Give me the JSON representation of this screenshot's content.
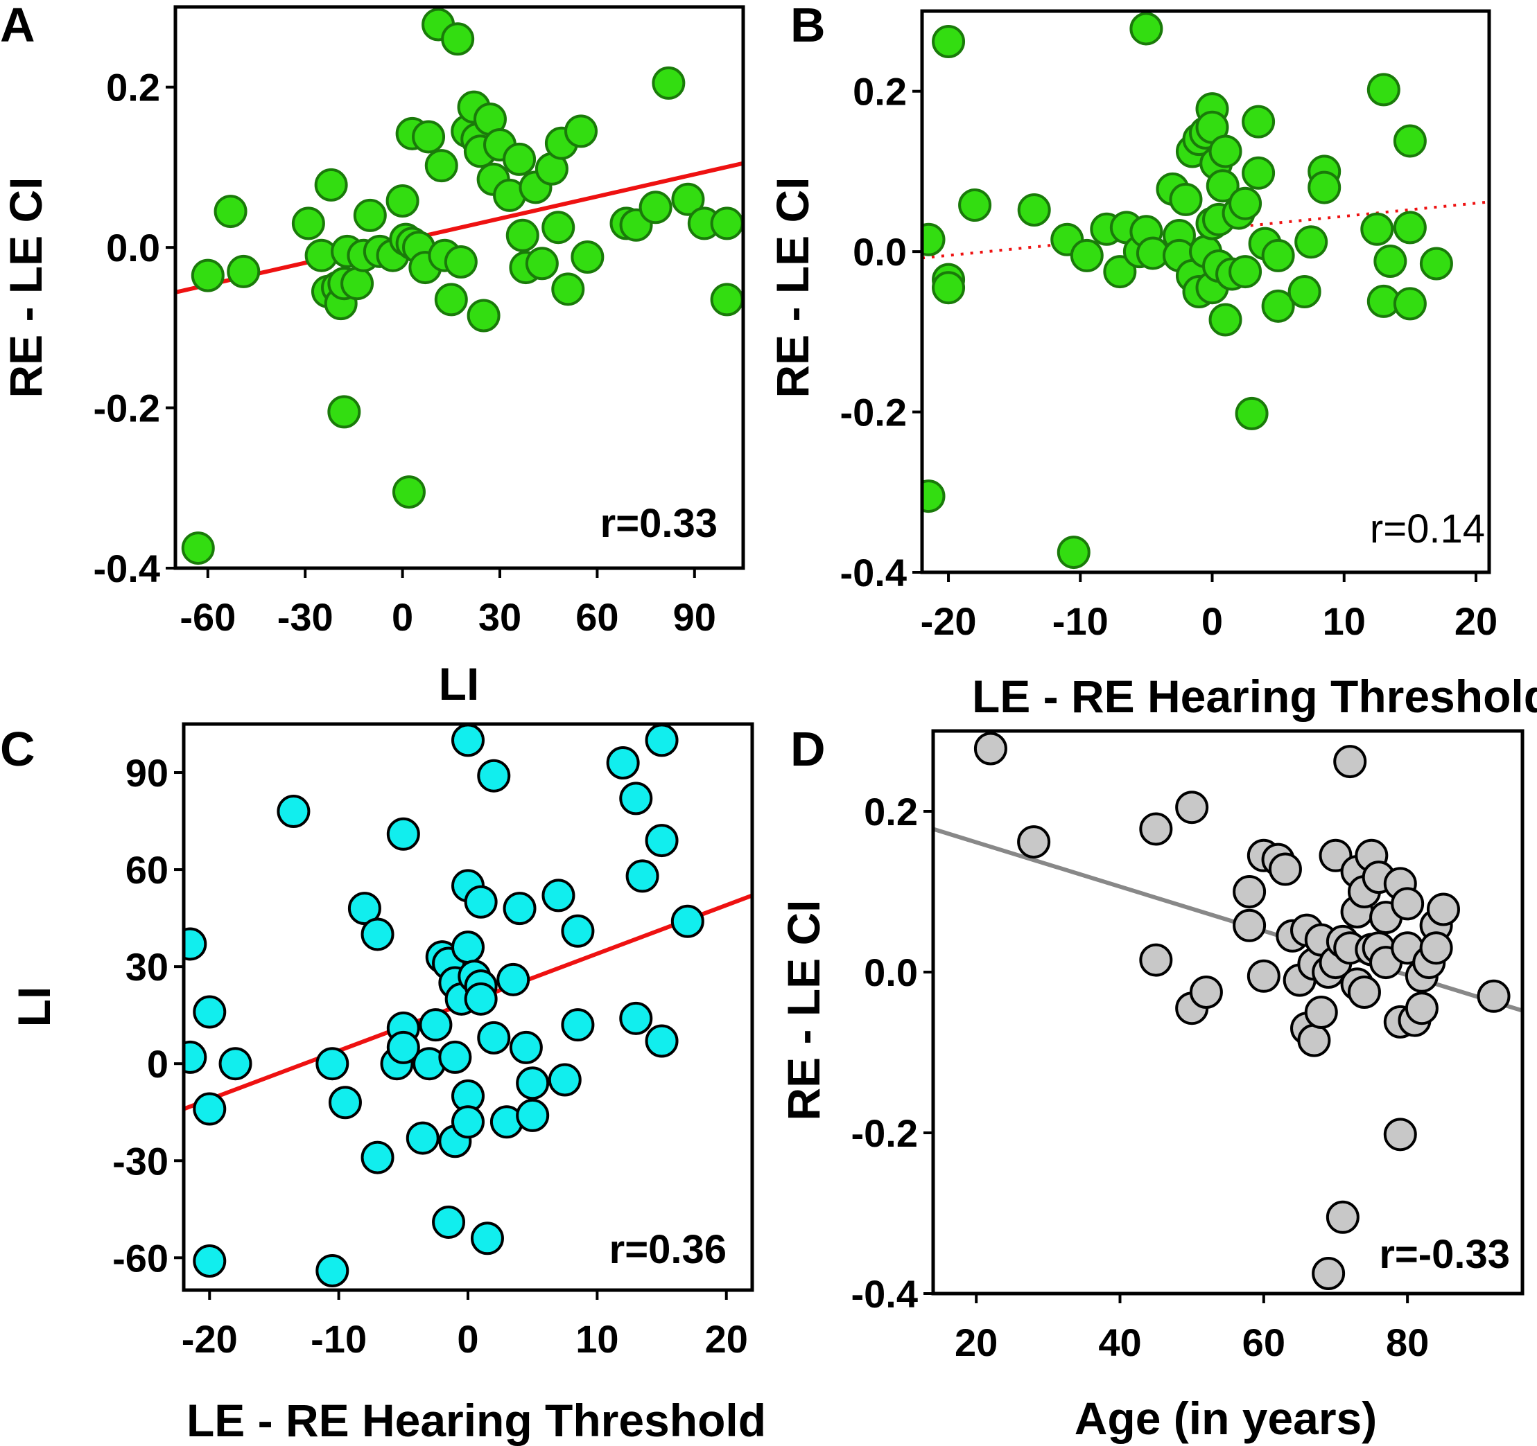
{
  "chart_data": [
    {
      "panel": "A",
      "type": "scatter",
      "xlabel": "LI",
      "ylabel": "RE - LE CI",
      "xlim": [
        -70,
        105
      ],
      "ylim": [
        -0.4,
        0.3
      ],
      "xticks": [
        -60,
        -30,
        0,
        30,
        60,
        90
      ],
      "yticks": [
        -0.4,
        -0.2,
        0.0,
        0.2
      ],
      "xtick_labels": [
        "-60",
        "-30",
        "0",
        "30",
        "60",
        "90"
      ],
      "ytick_labels": [
        "-0.4",
        "-0.2",
        "0.0",
        "0.2"
      ],
      "annotation": "r=0.33",
      "annotation_bold": true,
      "marker_color": "#33dd11",
      "marker_edge": "#1a7a0a",
      "trend": {
        "style": "solid",
        "color": "#ee1111",
        "x": [
          -70,
          105
        ],
        "y": [
          -0.056,
          0.105
        ]
      },
      "points": [
        {
          "x": -63,
          "y": -0.375
        },
        {
          "x": -60,
          "y": -0.035
        },
        {
          "x": -53,
          "y": 0.045
        },
        {
          "x": -49,
          "y": -0.03
        },
        {
          "x": 2,
          "y": -0.305
        },
        {
          "x": -18,
          "y": -0.205
        },
        {
          "x": -29,
          "y": 0.03
        },
        {
          "x": -25,
          "y": -0.01
        },
        {
          "x": -23,
          "y": -0.055
        },
        {
          "x": -22,
          "y": 0.078
        },
        {
          "x": -20,
          "y": -0.05
        },
        {
          "x": -19,
          "y": -0.07
        },
        {
          "x": -18,
          "y": -0.045
        },
        {
          "x": -17,
          "y": -0.005
        },
        {
          "x": -14,
          "y": -0.045
        },
        {
          "x": -12,
          "y": -0.01
        },
        {
          "x": -10,
          "y": 0.04
        },
        {
          "x": -7,
          "y": -0.005
        },
        {
          "x": -3,
          "y": -0.01
        },
        {
          "x": 0,
          "y": 0.058
        },
        {
          "x": 1,
          "y": 0.01
        },
        {
          "x": 3,
          "y": 0.005
        },
        {
          "x": 3,
          "y": 0.142
        },
        {
          "x": 5,
          "y": 0.0
        },
        {
          "x": 7,
          "y": -0.025
        },
        {
          "x": 8,
          "y": 0.138
        },
        {
          "x": 11,
          "y": 0.278
        },
        {
          "x": 12,
          "y": 0.102
        },
        {
          "x": 13,
          "y": -0.01
        },
        {
          "x": 15,
          "y": -0.065
        },
        {
          "x": 17,
          "y": 0.26
        },
        {
          "x": 18,
          "y": -0.018
        },
        {
          "x": 20,
          "y": 0.145
        },
        {
          "x": 22,
          "y": 0.175
        },
        {
          "x": 23,
          "y": 0.135
        },
        {
          "x": 24,
          "y": 0.12
        },
        {
          "x": 25,
          "y": -0.085
        },
        {
          "x": 27,
          "y": 0.16
        },
        {
          "x": 28,
          "y": 0.085
        },
        {
          "x": 30,
          "y": 0.128
        },
        {
          "x": 33,
          "y": 0.065
        },
        {
          "x": 36,
          "y": 0.11
        },
        {
          "x": 37,
          "y": 0.015
        },
        {
          "x": 38,
          "y": -0.025
        },
        {
          "x": 41,
          "y": 0.075
        },
        {
          "x": 43,
          "y": -0.02
        },
        {
          "x": 46,
          "y": 0.098
        },
        {
          "x": 48,
          "y": 0.025
        },
        {
          "x": 49,
          "y": 0.13
        },
        {
          "x": 51,
          "y": -0.052
        },
        {
          "x": 55,
          "y": 0.145
        },
        {
          "x": 57,
          "y": -0.012
        },
        {
          "x": 69,
          "y": 0.03
        },
        {
          "x": 72,
          "y": 0.028
        },
        {
          "x": 78,
          "y": 0.05
        },
        {
          "x": 82,
          "y": 0.205
        },
        {
          "x": 88,
          "y": 0.06
        },
        {
          "x": 93,
          "y": 0.03
        },
        {
          "x": 100,
          "y": 0.03
        },
        {
          "x": 100,
          "y": -0.065
        }
      ]
    },
    {
      "panel": "B",
      "type": "scatter",
      "xlabel": "LE - RE Hearing Threshold",
      "ylabel": "RE - LE CI",
      "xlim": [
        -22,
        21
      ],
      "ylim": [
        -0.4,
        0.3
      ],
      "xticks": [
        -20,
        -10,
        0,
        10,
        20
      ],
      "yticks": [
        -0.4,
        -0.2,
        0.0,
        0.2
      ],
      "xtick_labels": [
        "-20",
        "-10",
        "0",
        "10",
        "20"
      ],
      "ytick_labels": [
        "-0.4",
        "-0.2",
        "0.0",
        "0.2"
      ],
      "annotation": "r=0.14",
      "annotation_bold": false,
      "marker_color": "#33dd11",
      "marker_edge": "#1a7a0a",
      "trend": {
        "style": "dotted",
        "color": "#ee1111",
        "x": [
          -22,
          21
        ],
        "y": [
          -0.008,
          0.062
        ]
      },
      "points": [
        {
          "x": -21.5,
          "y": 0.015
        },
        {
          "x": -21.5,
          "y": -0.305
        },
        {
          "x": -20,
          "y": 0.262
        },
        {
          "x": -20,
          "y": -0.035
        },
        {
          "x": -20,
          "y": -0.045
        },
        {
          "x": -18,
          "y": 0.058
        },
        {
          "x": -13.5,
          "y": 0.052
        },
        {
          "x": -11,
          "y": 0.015
        },
        {
          "x": -10.5,
          "y": -0.375
        },
        {
          "x": -9.5,
          "y": -0.005
        },
        {
          "x": -8,
          "y": 0.028
        },
        {
          "x": -7,
          "y": -0.025
        },
        {
          "x": -6.5,
          "y": 0.03
        },
        {
          "x": -5.5,
          "y": 0.0
        },
        {
          "x": -5,
          "y": 0.278
        },
        {
          "x": -5,
          "y": 0.025
        },
        {
          "x": -4.5,
          "y": -0.002
        },
        {
          "x": -3,
          "y": 0.078
        },
        {
          "x": -2.5,
          "y": 0.02
        },
        {
          "x": -2.5,
          "y": -0.005
        },
        {
          "x": -2,
          "y": 0.065
        },
        {
          "x": -1.5,
          "y": -0.03
        },
        {
          "x": -1.5,
          "y": 0.125
        },
        {
          "x": -1,
          "y": 0.14
        },
        {
          "x": -1,
          "y": -0.05
        },
        {
          "x": -0.5,
          "y": 0.148
        },
        {
          "x": -0.5,
          "y": 0.0
        },
        {
          "x": 0,
          "y": 0.178
        },
        {
          "x": 0,
          "y": 0.155
        },
        {
          "x": 0,
          "y": 0.035
        },
        {
          "x": 0,
          "y": -0.045
        },
        {
          "x": 0.3,
          "y": 0.11
        },
        {
          "x": 0.5,
          "y": 0.04
        },
        {
          "x": 0.5,
          "y": -0.018
        },
        {
          "x": 0.8,
          "y": 0.082
        },
        {
          "x": 1,
          "y": 0.125
        },
        {
          "x": 1,
          "y": -0.085
        },
        {
          "x": 1.5,
          "y": -0.028
        },
        {
          "x": 2,
          "y": 0.048
        },
        {
          "x": 2.5,
          "y": 0.06
        },
        {
          "x": 2.5,
          "y": -0.025
        },
        {
          "x": 3,
          "y": -0.202
        },
        {
          "x": 3.5,
          "y": 0.098
        },
        {
          "x": 3.5,
          "y": 0.162
        },
        {
          "x": 4,
          "y": 0.01
        },
        {
          "x": 5,
          "y": -0.005
        },
        {
          "x": 5,
          "y": -0.068
        },
        {
          "x": 7,
          "y": -0.05
        },
        {
          "x": 7.5,
          "y": 0.012
        },
        {
          "x": 8.5,
          "y": 0.1
        },
        {
          "x": 8.5,
          "y": 0.08
        },
        {
          "x": 12.5,
          "y": 0.028
        },
        {
          "x": 13,
          "y": 0.202
        },
        {
          "x": 13,
          "y": -0.062
        },
        {
          "x": 13.5,
          "y": -0.012
        },
        {
          "x": 15,
          "y": 0.138
        },
        {
          "x": 15,
          "y": 0.03
        },
        {
          "x": 15,
          "y": -0.065
        },
        {
          "x": 17,
          "y": -0.015
        }
      ]
    },
    {
      "panel": "C",
      "type": "scatter",
      "xlabel": "LE - RE Hearing Threshold",
      "ylabel": "LI",
      "xlim": [
        -22,
        22
      ],
      "ylim": [
        -70,
        105
      ],
      "xticks": [
        -20,
        -10,
        0,
        10,
        20
      ],
      "yticks": [
        -60,
        -30,
        0,
        30,
        60,
        90
      ],
      "xtick_labels": [
        "-20",
        "-10",
        "0",
        "10",
        "20"
      ],
      "ytick_labels": [
        "-60",
        "-30",
        "0",
        "30",
        "60",
        "90"
      ],
      "annotation": "r=0.36",
      "annotation_bold": true,
      "marker_color": "#11eeee",
      "marker_edge": "#000000",
      "trend": {
        "style": "solid",
        "color": "#ee1111",
        "x": [
          -22,
          22
        ],
        "y": [
          -14,
          52
        ]
      },
      "points": [
        {
          "x": -21.5,
          "y": 37
        },
        {
          "x": -21.5,
          "y": 2
        },
        {
          "x": -20,
          "y": 16
        },
        {
          "x": -20,
          "y": -14
        },
        {
          "x": -20,
          "y": -61
        },
        {
          "x": -18,
          "y": 0
        },
        {
          "x": -13.5,
          "y": 78
        },
        {
          "x": -10.5,
          "y": 0
        },
        {
          "x": -10.5,
          "y": -64
        },
        {
          "x": -9.5,
          "y": -12
        },
        {
          "x": -8,
          "y": 48
        },
        {
          "x": -7,
          "y": 40
        },
        {
          "x": -7,
          "y": -29
        },
        {
          "x": -5.5,
          "y": 0
        },
        {
          "x": -5,
          "y": 71
        },
        {
          "x": -5,
          "y": 11
        },
        {
          "x": -5,
          "y": 5
        },
        {
          "x": -3.5,
          "y": -23
        },
        {
          "x": -3,
          "y": 0
        },
        {
          "x": -2.5,
          "y": 12
        },
        {
          "x": -2,
          "y": 33
        },
        {
          "x": -1.5,
          "y": 31
        },
        {
          "x": -1.5,
          "y": -49
        },
        {
          "x": -1,
          "y": 25
        },
        {
          "x": -1,
          "y": -24
        },
        {
          "x": -1,
          "y": 2
        },
        {
          "x": -0.5,
          "y": 20
        },
        {
          "x": 0,
          "y": 100
        },
        {
          "x": 0,
          "y": 55
        },
        {
          "x": 0,
          "y": 36
        },
        {
          "x": 0,
          "y": -10
        },
        {
          "x": 0,
          "y": -18
        },
        {
          "x": 0.5,
          "y": 27
        },
        {
          "x": 1,
          "y": 50
        },
        {
          "x": 1,
          "y": 24
        },
        {
          "x": 1,
          "y": 20
        },
        {
          "x": 1.5,
          "y": -54
        },
        {
          "x": 2,
          "y": 89
        },
        {
          "x": 2,
          "y": 8
        },
        {
          "x": 3,
          "y": -18
        },
        {
          "x": 3.5,
          "y": 26
        },
        {
          "x": 4,
          "y": 48
        },
        {
          "x": 4.5,
          "y": 5
        },
        {
          "x": 5,
          "y": -6
        },
        {
          "x": 5,
          "y": -16
        },
        {
          "x": 7,
          "y": 52
        },
        {
          "x": 7.5,
          "y": -5
        },
        {
          "x": 8.5,
          "y": 41
        },
        {
          "x": 8.5,
          "y": 12
        },
        {
          "x": 12,
          "y": 93
        },
        {
          "x": 13,
          "y": 82
        },
        {
          "x": 13,
          "y": 14
        },
        {
          "x": 13.5,
          "y": 58
        },
        {
          "x": 15,
          "y": 100
        },
        {
          "x": 15,
          "y": 69
        },
        {
          "x": 15,
          "y": 7
        },
        {
          "x": 17,
          "y": 44
        }
      ]
    },
    {
      "panel": "D",
      "type": "scatter",
      "xlabel": "Age (in years)",
      "ylabel": "RE - LE CI",
      "xlim": [
        14,
        96
      ],
      "ylim": [
        -0.4,
        0.3
      ],
      "xticks": [
        20,
        40,
        60,
        80
      ],
      "yticks": [
        -0.4,
        -0.2,
        0.0,
        0.2
      ],
      "xtick_labels": [
        "20",
        "40",
        "60",
        "80"
      ],
      "ytick_labels": [
        "-0.4",
        "-0.2",
        "0.0",
        "0.2"
      ],
      "annotation": "r=-0.33",
      "annotation_bold": true,
      "marker_color": "#c8c8c8",
      "marker_edge": "#000000",
      "trend": {
        "style": "solid",
        "color": "#888888",
        "x": [
          14,
          96
        ],
        "y": [
          0.178,
          -0.048
        ]
      },
      "points": [
        {
          "x": 22,
          "y": 0.278
        },
        {
          "x": 28,
          "y": 0.162
        },
        {
          "x": 45,
          "y": 0.178
        },
        {
          "x": 45,
          "y": 0.015
        },
        {
          "x": 50,
          "y": 0.205
        },
        {
          "x": 50,
          "y": -0.045
        },
        {
          "x": 52,
          "y": -0.025
        },
        {
          "x": 58,
          "y": 0.1
        },
        {
          "x": 58,
          "y": 0.058
        },
        {
          "x": 60,
          "y": 0.145
        },
        {
          "x": 60,
          "y": -0.005
        },
        {
          "x": 62,
          "y": 0.14
        },
        {
          "x": 63,
          "y": 0.128
        },
        {
          "x": 64,
          "y": 0.045
        },
        {
          "x": 65,
          "y": -0.01
        },
        {
          "x": 66,
          "y": 0.052
        },
        {
          "x": 66,
          "y": -0.07
        },
        {
          "x": 67,
          "y": 0.01
        },
        {
          "x": 67,
          "y": -0.085
        },
        {
          "x": 68,
          "y": 0.04
        },
        {
          "x": 68,
          "y": -0.05
        },
        {
          "x": 69,
          "y": -0.375
        },
        {
          "x": 69,
          "y": 0.0
        },
        {
          "x": 70,
          "y": 0.145
        },
        {
          "x": 70,
          "y": 0.012
        },
        {
          "x": 71,
          "y": -0.305
        },
        {
          "x": 71,
          "y": 0.038
        },
        {
          "x": 72,
          "y": 0.262
        },
        {
          "x": 72,
          "y": 0.03
        },
        {
          "x": 73,
          "y": 0.125
        },
        {
          "x": 73,
          "y": -0.015
        },
        {
          "x": 73,
          "y": 0.075
        },
        {
          "x": 74,
          "y": 0.1
        },
        {
          "x": 74,
          "y": -0.025
        },
        {
          "x": 75,
          "y": 0.145
        },
        {
          "x": 75,
          "y": 0.028
        },
        {
          "x": 76,
          "y": 0.118
        },
        {
          "x": 76,
          "y": 0.03
        },
        {
          "x": 77,
          "y": 0.068
        },
        {
          "x": 77,
          "y": 0.012
        },
        {
          "x": 79,
          "y": 0.11
        },
        {
          "x": 79,
          "y": -0.062
        },
        {
          "x": 79,
          "y": -0.202
        },
        {
          "x": 80,
          "y": 0.085
        },
        {
          "x": 80,
          "y": 0.03
        },
        {
          "x": 81,
          "y": -0.06
        },
        {
          "x": 82,
          "y": -0.045
        },
        {
          "x": 82,
          "y": -0.005
        },
        {
          "x": 83,
          "y": 0.012
        },
        {
          "x": 84,
          "y": 0.058
        },
        {
          "x": 84,
          "y": 0.03
        },
        {
          "x": 85,
          "y": 0.078
        },
        {
          "x": 92,
          "y": -0.03
        }
      ]
    }
  ]
}
